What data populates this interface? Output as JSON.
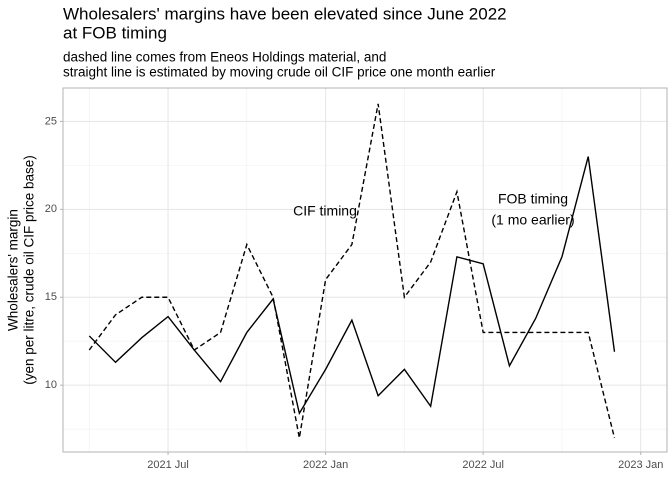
{
  "chart_data": {
    "type": "line",
    "title": [
      "Wholesalers' margins have been elevated since June 2022",
      "at FOB timing"
    ],
    "subtitle": [
      "dashed line comes from Eneos Holdings material, and",
      "straight line is estimated by moving crude oil CIF price one month earlier"
    ],
    "y_label": [
      "Wholesalers' margin",
      "(yen per litre, crude oil CIF price base)"
    ],
    "x": [
      "2021-04",
      "2021-05",
      "2021-06",
      "2021-07",
      "2021-08",
      "2021-09",
      "2021-10",
      "2021-11",
      "2021-12",
      "2022-01",
      "2022-02",
      "2022-03",
      "2022-04",
      "2022-05",
      "2022-06",
      "2022-07",
      "2022-08",
      "2022-09",
      "2022-10",
      "2022-11",
      "2022-12"
    ],
    "series": [
      {
        "name": "CIF timing",
        "color": "#000000",
        "dashed": true,
        "values": [
          12.0,
          14.0,
          15.0,
          15.0,
          12.0,
          13.0,
          18.0,
          15.0,
          7.0,
          16.0,
          18.0,
          26.0,
          15.0,
          17.0,
          21.0,
          13.0,
          13.0,
          13.0,
          13.0,
          13.0,
          7.0
        ]
      },
      {
        "name": "FOB timing",
        "note": "(1 mo earlier)",
        "color": "#000000",
        "dashed": false,
        "values": [
          12.8,
          11.3,
          12.7,
          13.9,
          12.0,
          10.2,
          13.0,
          14.9,
          8.4,
          10.9,
          13.7,
          9.4,
          10.9,
          8.8,
          17.3,
          16.9,
          11.1,
          13.8,
          17.3,
          23.0,
          11.9
        ]
      }
    ],
    "xlim": [
      "2021-03",
      "2023-02"
    ],
    "xticks": [
      {
        "value": "2021-07",
        "label": "2021 Jul"
      },
      {
        "value": "2022-01",
        "label": "2022 Jan"
      },
      {
        "value": "2022-07",
        "label": "2022 Jul"
      },
      {
        "value": "2023-01",
        "label": "2023 Jan"
      }
    ],
    "ylim": [
      6.2,
      26.9
    ],
    "yticks": [
      10,
      15,
      20,
      25
    ],
    "grid": true
  }
}
